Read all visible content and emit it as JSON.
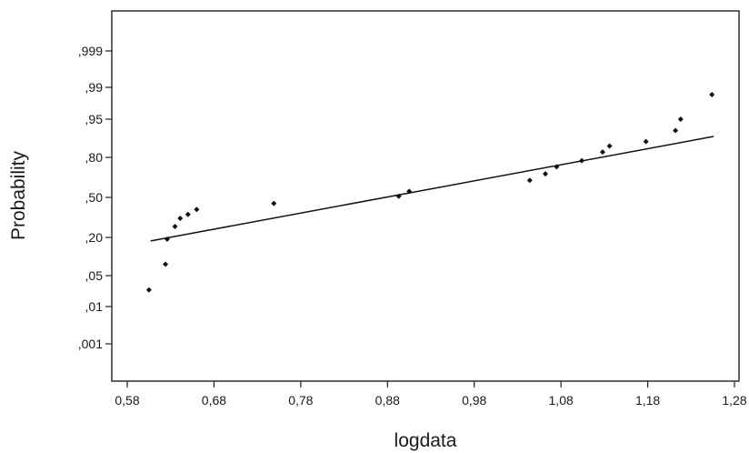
{
  "chart_data": {
    "type": "scatter",
    "title": "",
    "xlabel": "logdata",
    "ylabel": "Probability",
    "x_ticks": [
      "0,58",
      "0,68",
      "0,78",
      "0,88",
      "0,98",
      "1,08",
      "1,18",
      "1,28"
    ],
    "x_tick_values": [
      0.58,
      0.68,
      0.78,
      0.88,
      0.98,
      1.08,
      1.18,
      1.28
    ],
    "y_ticks": [
      ",001",
      ",01",
      ",05",
      ",20",
      ",50",
      ",80",
      ",95",
      ",99",
      ",999"
    ],
    "y_tick_values": [
      0.001,
      0.01,
      0.05,
      0.2,
      0.5,
      0.8,
      0.95,
      0.99,
      0.999
    ],
    "y_scale": "normal-probability",
    "xlim": [
      0.55,
      1.293
    ],
    "grid": false,
    "points": [
      {
        "x": 0.605,
        "y": 0.025
      },
      {
        "x": 0.624,
        "y": 0.08
      },
      {
        "x": 0.626,
        "y": 0.19
      },
      {
        "x": 0.635,
        "y": 0.27
      },
      {
        "x": 0.641,
        "y": 0.33
      },
      {
        "x": 0.65,
        "y": 0.36
      },
      {
        "x": 0.66,
        "y": 0.4
      },
      {
        "x": 0.749,
        "y": 0.45
      },
      {
        "x": 0.893,
        "y": 0.51
      },
      {
        "x": 0.905,
        "y": 0.55
      },
      {
        "x": 1.044,
        "y": 0.64
      },
      {
        "x": 1.062,
        "y": 0.69
      },
      {
        "x": 1.075,
        "y": 0.74
      },
      {
        "x": 1.104,
        "y": 0.78
      },
      {
        "x": 1.128,
        "y": 0.83
      },
      {
        "x": 1.136,
        "y": 0.86
      },
      {
        "x": 1.178,
        "y": 0.88
      },
      {
        "x": 1.212,
        "y": 0.92
      },
      {
        "x": 1.218,
        "y": 0.95
      },
      {
        "x": 1.254,
        "y": 0.985
      }
    ],
    "fit_line": {
      "x": [
        0.607,
        1.256
      ],
      "y": [
        0.18,
        0.9
      ]
    },
    "colors": {
      "points": "#111111",
      "line": "#111111",
      "frame": "#222222"
    }
  }
}
